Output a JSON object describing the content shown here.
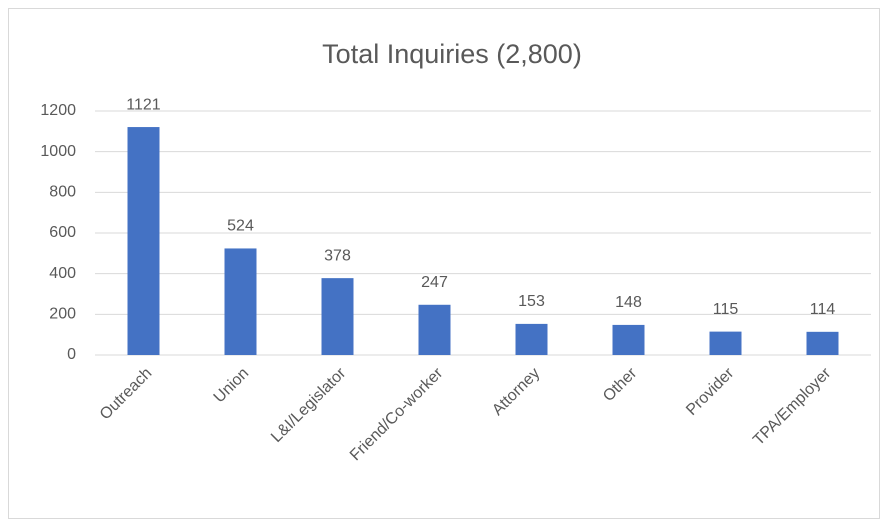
{
  "chart_data": {
    "type": "bar",
    "title": "Total Inquiries (2,800)",
    "categories": [
      "Outreach",
      "Union",
      "L&I/Legislator",
      "Friend/Co-worker",
      "Attorney",
      "Other",
      "Provider",
      "TPA/Employer"
    ],
    "values": [
      1121,
      524,
      378,
      247,
      153,
      148,
      115,
      114
    ],
    "color": "#4472c4",
    "ylim": [
      0,
      1200
    ],
    "yticks": [
      0,
      200,
      400,
      600,
      800,
      1000,
      1200
    ],
    "grid": true
  }
}
